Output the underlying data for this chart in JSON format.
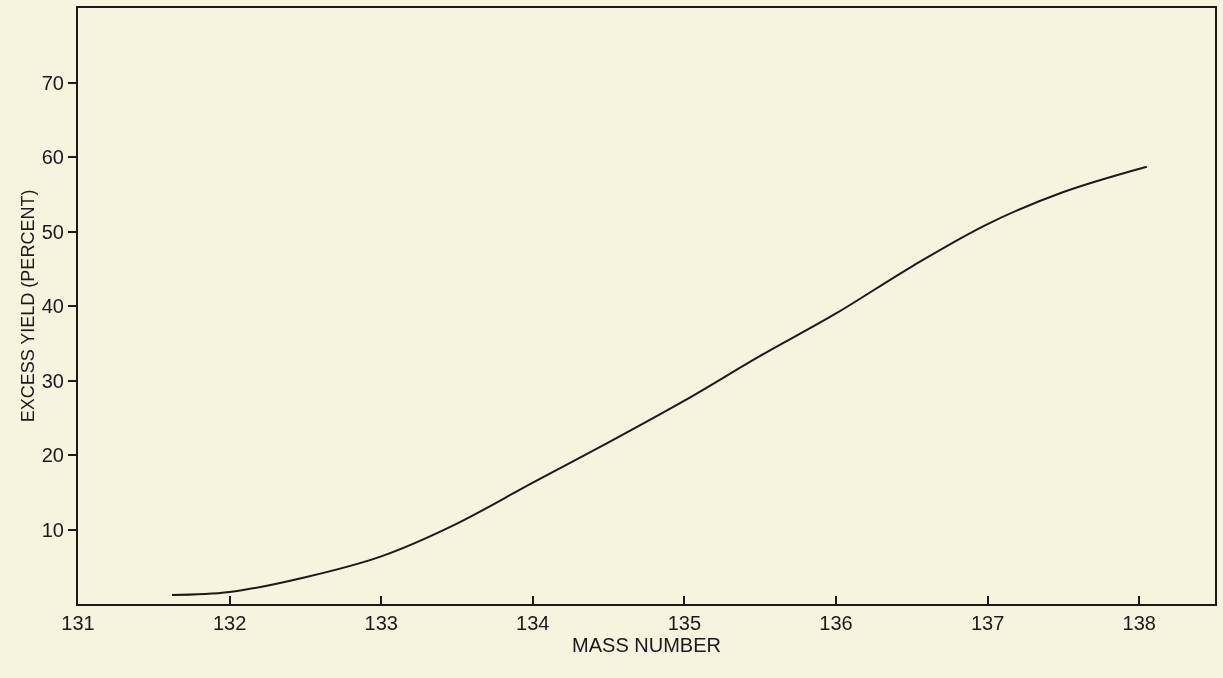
{
  "chart_data": {
    "type": "line",
    "xlabel": "MASS NUMBER",
    "ylabel": "EXCESS YIELD (PERCENT)",
    "series": [
      {
        "color": "#1a1a1a",
        "x": [
          131.62,
          132,
          132.5,
          133,
          133.5,
          134,
          134.5,
          135,
          135.5,
          136,
          136.5,
          137,
          137.5,
          138.05
        ],
        "values": [
          1.2,
          1.6,
          3.6,
          6.4,
          10.8,
          16.3,
          21.7,
          27.3,
          33.3,
          39,
          45.3,
          51,
          55.3,
          58.7
        ]
      }
    ],
    "xlim": [
      131,
      138.5
    ],
    "xticks": [
      131,
      132,
      133,
      134,
      135,
      136,
      137,
      138
    ],
    "ylim": [
      0,
      80
    ],
    "yticks": [
      10,
      20,
      30,
      40,
      50,
      60,
      70
    ],
    "grid": false,
    "marker": "none",
    "line_style": "solid"
  }
}
